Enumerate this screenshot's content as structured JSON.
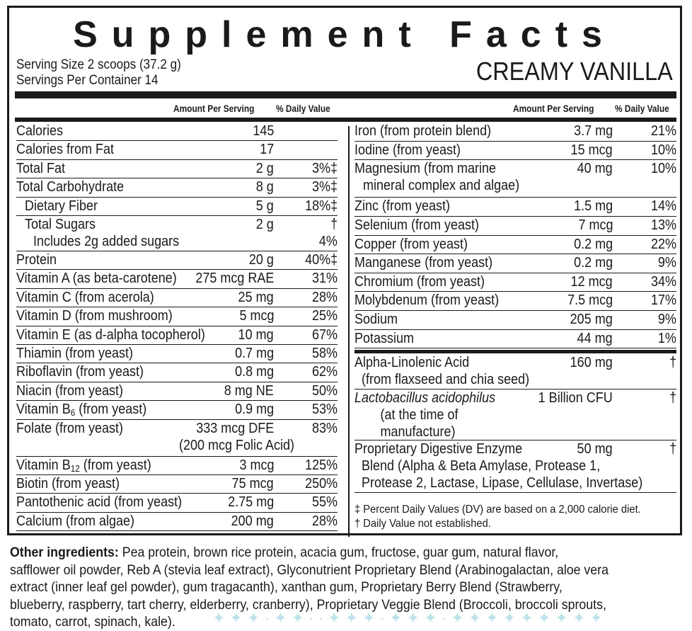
{
  "title": "Supplement Facts",
  "serving_size": "Serving Size 2 scoops (37.2 g)",
  "servings_per_container": "Servings Per Container 14",
  "flavor": "CREAMY VANILLA",
  "col_amount": "Amount Per Serving",
  "col_dv": "% Daily Value",
  "left": [
    {
      "name": "Calories",
      "amount": "145",
      "dv": ""
    },
    {
      "name": "Calories from Fat",
      "amount": "17",
      "dv": ""
    },
    {
      "name": "Total Fat",
      "amount": "2 g",
      "dv": "3%‡"
    },
    {
      "name": "Total Carbohydrate",
      "amount": "8 g",
      "dv": "3%‡"
    },
    {
      "name": "Dietary Fiber",
      "amount": "5 g",
      "dv": "18%‡"
    },
    {
      "name": "Total Sugars",
      "amount": "2 g",
      "dv": "†",
      "line2": "Includes 2g added sugars",
      "dv2": "4%"
    },
    {
      "name": "Protein",
      "amount": "20 g",
      "dv": "40%‡"
    },
    {
      "name": "Vitamin A (as beta-carotene)",
      "amount": "275 mcg RAE",
      "dv": "31%"
    },
    {
      "name": "Vitamin C (from acerola)",
      "amount": "25 mg",
      "dv": "28%"
    },
    {
      "name": "Vitamin D (from mushroom)",
      "amount": "5 mcg",
      "dv": "25%"
    },
    {
      "name": "Vitamin E (as d-alpha tocopherol)",
      "amount": "10 mg",
      "dv": "67%"
    },
    {
      "name": "Thiamin (from yeast)",
      "amount": "0.7 mg",
      "dv": "58%"
    },
    {
      "name": "Riboflavin (from yeast)",
      "amount": "0.8 mg",
      "dv": "62%"
    },
    {
      "name": "Niacin (from yeast)",
      "amount": "8 mg NE",
      "dv": "50%"
    },
    {
      "name": "Vitamin B6 (from yeast)",
      "amount": "0.9 mg",
      "dv": "53%"
    },
    {
      "name": "Folate (from yeast)",
      "amount": "333 mcg DFE",
      "dv": "83%",
      "line2": "(200 mcg Folic Acid)"
    },
    {
      "name": "Vitamin B12 (from yeast)",
      "amount": "3 mcg",
      "dv": "125%"
    },
    {
      "name": "Biotin (from yeast)",
      "amount": "75 mcg",
      "dv": "250%"
    },
    {
      "name": "Pantothenic acid (from yeast)",
      "amount": "2.75 mg",
      "dv": "55%"
    },
    {
      "name": "Calcium (from algae)",
      "amount": "200 mg",
      "dv": "28%"
    }
  ],
  "right": [
    {
      "name": "Iron (from protein blend)",
      "amount": "3.7 mg",
      "dv": "21%"
    },
    {
      "name": "Iodine (from yeast)",
      "amount": "15 mcg",
      "dv": "10%"
    },
    {
      "name": "Magnesium (from marine",
      "amount": "40 mg",
      "dv": "10%",
      "line2": "mineral complex and algae)"
    },
    {
      "name": "Zinc (from yeast)",
      "amount": "1.5 mg",
      "dv": "14%"
    },
    {
      "name": "Selenium (from yeast)",
      "amount": "7 mcg",
      "dv": "13%"
    },
    {
      "name": "Copper (from yeast)",
      "amount": "0.2 mg",
      "dv": "22%"
    },
    {
      "name": "Manganese (from yeast)",
      "amount": "0.2 mg",
      "dv": "9%"
    },
    {
      "name": "Chromium (from yeast)",
      "amount": "12 mcg",
      "dv": "34%"
    },
    {
      "name": "Molybdenum (from yeast)",
      "amount": "7.5 mcg",
      "dv": "17%"
    },
    {
      "name": "Sodium",
      "amount": "205 mg",
      "dv": "9%"
    },
    {
      "name": "Potassium",
      "amount": "44 mg",
      "dv": "1%"
    }
  ],
  "blends": [
    {
      "name": "Alpha-Linolenic Acid",
      "amount": "160 mg",
      "dv": "†",
      "line2": "(from flaxseed and chia seed)"
    },
    {
      "name": "Lactobacillus acidophilus",
      "amount": "1 Billion CFU",
      "dv": "†",
      "line2": "(at the time of",
      "line3": "manufacture)"
    },
    {
      "name": "Proprietary Digestive Enzyme",
      "amount": "50 mg",
      "dv": "†",
      "line2": "Blend (Alpha & Beta Amylase, Protease 1,",
      "line3": "Protease 2, Lactase, Lipase, Cellulase, Invertase)"
    }
  ],
  "footnote1": "‡ Percent Daily Values (DV) are based on a 2,000 calorie diet.",
  "footnote2": "† Daily Value not established.",
  "ingredients_label": "Other ingredients:",
  "ingredients_lines": [
    " Pea protein, brown rice protein, acacia gum, fructose, guar gum, natural flavor,",
    "safflower oil powder, Reb A (stevia leaf extract), Glyconutrient Proprietary Blend (Arabinogalactan, aloe vera",
    "extract (inner leaf gel powder), gum tragacanth), xanthan gum, Proprietary Berry Blend (Strawberry,",
    "blueberry, raspberry, tart cherry, elderberry, cranberry), Proprietary Veggie Blend (Broccoli, broccoli sprouts,",
    "tomato, carrot, spinach, kale)."
  ]
}
